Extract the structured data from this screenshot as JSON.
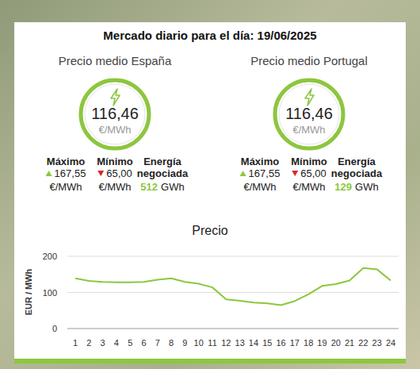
{
  "header": {
    "title": "Mercado diario para el día: 19/06/2025"
  },
  "panels": [
    {
      "title": "Precio medio España",
      "average": {
        "value": "116,46",
        "unit": "€/MWh"
      },
      "stats": [
        {
          "label": "Máximo",
          "value": "167,55",
          "unit": "€/MWh"
        },
        {
          "label": "Mínimo",
          "value": "65,00",
          "unit": "€/MWh"
        },
        {
          "label": "Energía negociada",
          "value": "512",
          "unit": "GWh"
        }
      ]
    },
    {
      "title": "Precio medio Portugal",
      "average": {
        "value": "116,46",
        "unit": "€/MWh"
      },
      "stats": [
        {
          "label": "Máximo",
          "value": "167,55",
          "unit": "€/MWh"
        },
        {
          "label": "Mínimo",
          "value": "65,00",
          "unit": "€/MWh"
        },
        {
          "label": "Energía negociada",
          "value": "129",
          "unit": "GWh"
        }
      ]
    }
  ],
  "chart_data": {
    "type": "line",
    "title": "Precio",
    "y_label": "EUR / MWh",
    "categories": [
      "1",
      "2",
      "3",
      "4",
      "5",
      "6",
      "7",
      "8",
      "9",
      "10",
      "11",
      "12",
      "13",
      "14",
      "15",
      "16",
      "17",
      "18",
      "19",
      "20",
      "21",
      "22",
      "23",
      "24"
    ],
    "values": [
      139,
      132,
      129,
      128,
      128,
      129,
      135,
      139,
      129,
      124,
      114,
      81,
      77,
      72,
      70,
      65,
      76,
      95,
      118,
      123,
      133,
      167.55,
      164,
      133
    ],
    "color": "#8dc63f",
    "ylim": [
      0,
      200
    ],
    "yticks": [
      0,
      100,
      200
    ],
    "grid": true
  }
}
